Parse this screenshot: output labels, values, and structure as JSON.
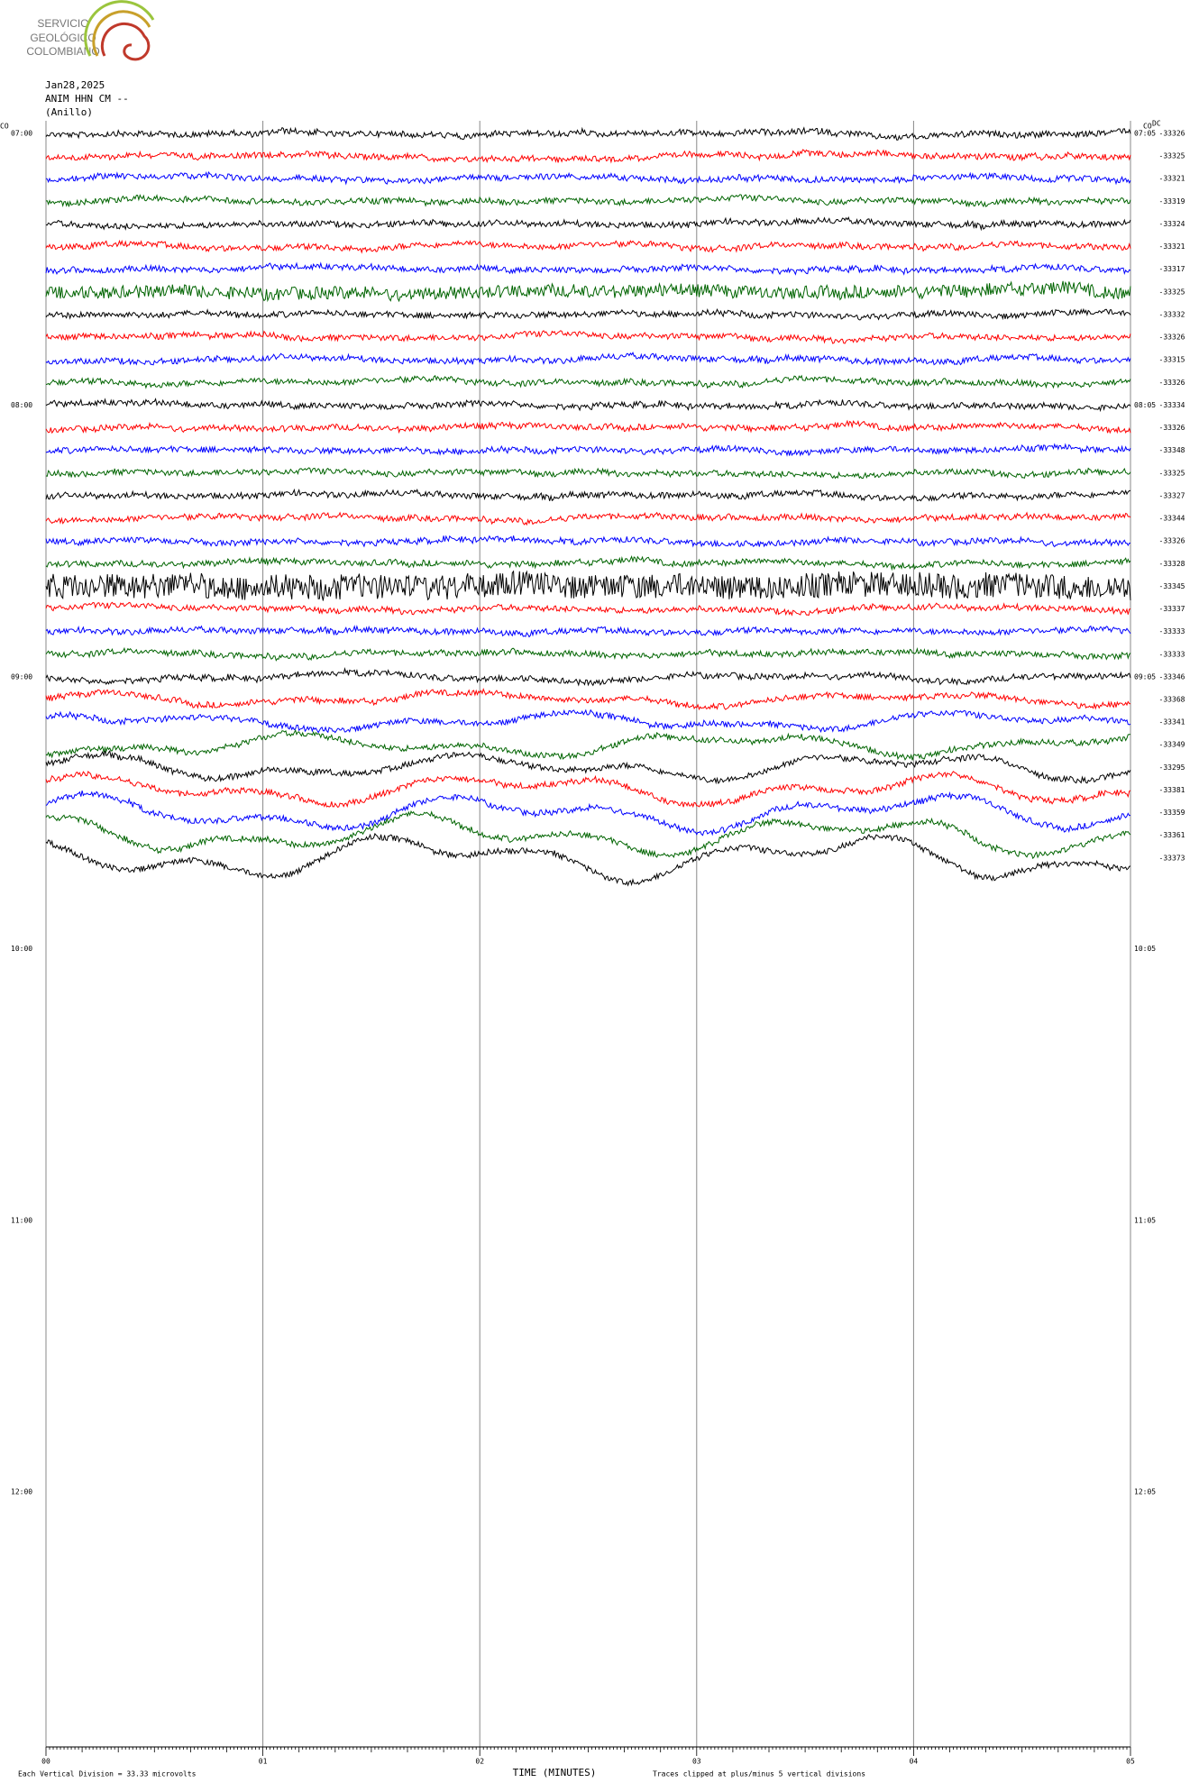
{
  "header": {
    "logo": [
      "SERVICIO",
      "GEOLÓGICO",
      "COLOMBIANO"
    ],
    "date": "Jan28,2025",
    "station": "ANIM HHN CM --",
    "location": "(Anillo)"
  },
  "plot": {
    "left_corner": "CO",
    "right_corner": "CO",
    "dc_header": "DC",
    "left_times": [
      "07:00",
      "08:00",
      "09:00",
      "10:00",
      "11:00",
      "12:00"
    ],
    "right_times": [
      "07:05",
      "08:05",
      "09:05",
      "10:05",
      "11:05",
      "12:05"
    ],
    "x_ticks": [
      "00",
      "01",
      "02",
      "03",
      "04",
      "05"
    ],
    "x_label": "TIME (MINUTES)",
    "scale_note": "Each Vertical Division =  33.33 microvolts",
    "clip_note": "Traces clipped at plus/minus 5 vertical divisions",
    "trace_colors": [
      "#000000",
      "#ff0000",
      "#0000ff",
      "#006400"
    ],
    "dc_offsets": [
      "-33326",
      "-33325",
      "-33321",
      "-33319",
      "-33324",
      "-33321",
      "-33317",
      "-33325",
      "-33332",
      "-33326",
      "-33315",
      "-33326",
      "-33334",
      "-33326",
      "-33348",
      "-33325",
      "-33327",
      "-33344",
      "-33326",
      "-33328",
      "-33345",
      "-33337",
      "-33333",
      "-33333",
      "-33346",
      "-33368",
      "-33341",
      "-33349",
      "-33295",
      "-33381",
      "-33359",
      "-33361",
      "-33373"
    ]
  }
}
